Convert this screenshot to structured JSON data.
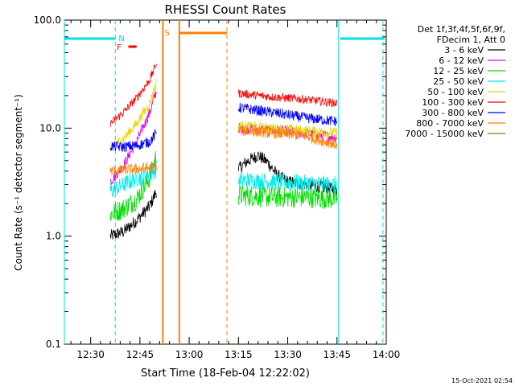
{
  "chart_data": {
    "type": "line",
    "title": "RHESSI Count Rates",
    "xlabel": "Start Time (18-Feb-04 12:22:02)",
    "ylabel": "Count Rate (s⁻¹ detector segment⁻¹)",
    "yscale": "log",
    "ylim": [
      0.1,
      100.0
    ],
    "xlim_minutes": [
      22.0,
      120.0
    ],
    "x_ticks": [
      {
        "label": "12:30",
        "min": 30
      },
      {
        "label": "12:45",
        "min": 45
      },
      {
        "label": "13:00",
        "min": 60
      },
      {
        "label": "13:15",
        "min": 75
      },
      {
        "label": "13:30",
        "min": 90
      },
      {
        "label": "13:45",
        "min": 105
      },
      {
        "label": "14:00",
        "min": 120
      }
    ],
    "y_ticks": [
      {
        "label": "0.1",
        "value": 0.1
      },
      {
        "label": "1.0",
        "value": 1.0
      },
      {
        "label": "10.0",
        "value": 10.0
      },
      {
        "label": "100.0",
        "value": 100.0
      }
    ],
    "legend_header": [
      "Det 1f,3f,4f,5f,6f,9f,",
      "FDecim 1, Att 0"
    ],
    "legend_placement": "right",
    "series": [
      {
        "name": "3 - 6 keV",
        "color": "#000000",
        "segments": [
          {
            "x": [
              36.0,
              40.0,
              44.0,
              48.0,
              50.0
            ],
            "y": [
              1.0,
              1.1,
              1.4,
              1.9,
              2.6
            ]
          },
          {
            "x": [
              75.0,
              78.0,
              81.0,
              84.0,
              87.0,
              90.0,
              96.0,
              102.0,
              105.0
            ],
            "y": [
              4.2,
              5.0,
              5.6,
              4.8,
              3.6,
              3.2,
              3.0,
              2.8,
              2.7
            ]
          }
        ]
      },
      {
        "name": "6 - 12 keV",
        "color": "#e000e0",
        "segments": [
          {
            "x": [
              36.0,
              40.0,
              44.0,
              48.0,
              50.0
            ],
            "y": [
              3.2,
              4.5,
              7.5,
              14.0,
              22.0
            ]
          },
          {
            "x": [
              75.0,
              85.0,
              95.0,
              105.0
            ],
            "y": [
              10.0,
              9.6,
              9.0,
              8.2
            ]
          }
        ]
      },
      {
        "name": "12 - 25 keV",
        "color": "#00dd00",
        "segments": [
          {
            "x": [
              36.0,
              40.0,
              44.0,
              48.0,
              50.0
            ],
            "y": [
              1.6,
              1.8,
              2.2,
              3.5,
              5.5
            ]
          },
          {
            "x": [
              75.0,
              85.0,
              95.0,
              105.0
            ],
            "y": [
              2.4,
              2.3,
              2.3,
              2.2
            ]
          }
        ]
      },
      {
        "name": "25 - 50 keV",
        "color": "#00e8e8",
        "segments": [
          {
            "x": [
              36.0,
              40.0,
              44.0,
              48.0,
              50.0
            ],
            "y": [
              2.6,
              3.0,
              3.4,
              3.8,
              4.2
            ]
          },
          {
            "x": [
              75.0,
              85.0,
              95.0,
              105.0
            ],
            "y": [
              3.3,
              3.2,
              3.1,
              3.0
            ]
          }
        ]
      },
      {
        "name": "50 - 100 keV",
        "color": "#e8d800",
        "segments": [
          {
            "x": [
              36.0,
              40.0,
              44.0,
              48.0,
              50.0
            ],
            "y": [
              6.5,
              8.0,
              11.0,
              17.0,
              26.0
            ]
          },
          {
            "x": [
              75.0,
              85.0,
              95.0,
              105.0
            ],
            "y": [
              10.5,
              10.0,
              9.5,
              9.0
            ]
          }
        ]
      },
      {
        "name": "100 - 300 keV",
        "color": "#ff0000",
        "segments": [
          {
            "x": [
              36.0,
              40.0,
              44.0,
              48.0,
              50.0
            ],
            "y": [
              11.0,
              14.0,
              19.0,
              28.0,
              40.0
            ]
          },
          {
            "x": [
              75.0,
              85.0,
              95.0,
              105.0
            ],
            "y": [
              21.0,
              19.5,
              18.5,
              17.0
            ]
          }
        ]
      },
      {
        "name": "300 - 800 keV",
        "color": "#0000ff",
        "segments": [
          {
            "x": [
              36.0,
              40.0,
              44.0,
              48.0,
              50.0
            ],
            "y": [
              6.8,
              6.7,
              6.9,
              7.5,
              9.0
            ]
          },
          {
            "x": [
              75.0,
              85.0,
              95.0,
              105.0
            ],
            "y": [
              15.5,
              14.0,
              12.5,
              11.5
            ]
          }
        ]
      },
      {
        "name": "800 - 7000 keV",
        "color": "#ff8000",
        "segments": [
          {
            "x": [
              36.0,
              40.0,
              44.0,
              48.0,
              50.0
            ],
            "y": [
              4.0,
              4.1,
              4.2,
              4.3,
              4.4
            ]
          },
          {
            "x": [
              75.0,
              85.0,
              95.0,
              105.0
            ],
            "y": [
              9.5,
              9.0,
              8.5,
              7.0
            ]
          }
        ]
      },
      {
        "name": "7000 - 15000 keV",
        "color": "#808000",
        "segments": []
      }
    ],
    "overlays": {
      "flag_label_N": "N",
      "flag_label_F": "F",
      "flag_label_S": "S",
      "N_color": "#00e0e0",
      "F_color": "#ff0000",
      "S_color": "#ff8000",
      "N_flag_bars": [
        [
          22.0,
          37.5
        ],
        [
          106.0,
          119.5
        ]
      ],
      "F_flag_bar": [
        41.5,
        44.0
      ],
      "S_flag_bar": [
        57.0,
        71.5
      ],
      "N_solid_lines": [
        22.0,
        105.5
      ],
      "N_dashed_lines": [
        37.5,
        119.0
      ],
      "S_solid_lines": [
        52.0,
        57.0
      ],
      "S_dashed_lines": [
        71.5
      ]
    }
  },
  "footer": {
    "timestamp": "15-Oct-2021 02:54"
  }
}
